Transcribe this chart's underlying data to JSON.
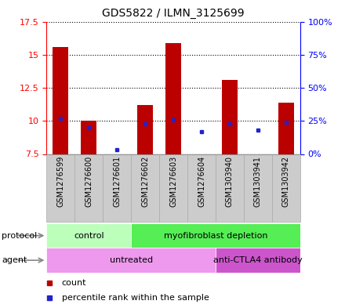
{
  "title": "GDS5822 / ILMN_3125699",
  "samples": [
    "GSM1276599",
    "GSM1276600",
    "GSM1276601",
    "GSM1276602",
    "GSM1276603",
    "GSM1276604",
    "GSM1303940",
    "GSM1303941",
    "GSM1303942"
  ],
  "count_values": [
    15.55,
    10.0,
    7.5,
    11.2,
    15.9,
    7.5,
    13.1,
    7.5,
    11.4
  ],
  "count_base": 7.5,
  "percentile_values": [
    27,
    20,
    3,
    23,
    26,
    17,
    23,
    18,
    24
  ],
  "ylim_left": [
    7.5,
    17.5
  ],
  "ylim_right": [
    0,
    100
  ],
  "yticks_left": [
    7.5,
    10.0,
    12.5,
    15.0,
    17.5
  ],
  "ytick_labels_left": [
    "7.5",
    "10",
    "12.5",
    "15",
    "17.5"
  ],
  "yticks_right": [
    0,
    25,
    50,
    75,
    100
  ],
  "ytick_labels_right": [
    "0%",
    "25%",
    "50%",
    "75%",
    "100%"
  ],
  "bar_color": "#bb0000",
  "dot_color": "#2222cc",
  "protocol_groups": [
    {
      "label": "control",
      "start": 0,
      "end": 3,
      "color": "#bbffbb"
    },
    {
      "label": "myofibroblast depletion",
      "start": 3,
      "end": 9,
      "color": "#55ee55"
    }
  ],
  "agent_groups": [
    {
      "label": "untreated",
      "start": 0,
      "end": 6,
      "color": "#ee99ee"
    },
    {
      "label": "anti-CTLA4 antibody",
      "start": 6,
      "end": 9,
      "color": "#cc55cc"
    }
  ],
  "legend_count_label": "count",
  "legend_pct_label": "percentile rank within the sample",
  "sample_box_color": "#cccccc",
  "sample_box_border": "#aaaaaa",
  "plot_bg": "#ffffff",
  "left_label_color": "red",
  "right_label_color": "blue"
}
